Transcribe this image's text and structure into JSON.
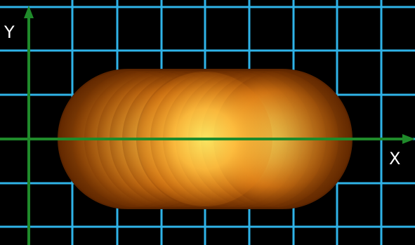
{
  "diagram": {
    "axis_labels": {
      "x": "X",
      "y": "Y"
    },
    "colors": {
      "background": "#000000",
      "grid": "#2fb3e8",
      "axes": "#1f8a2a",
      "glow_center": "#fff36a",
      "glow_mid": "#ffb030",
      "glow_edge": "#5a2400"
    }
  }
}
